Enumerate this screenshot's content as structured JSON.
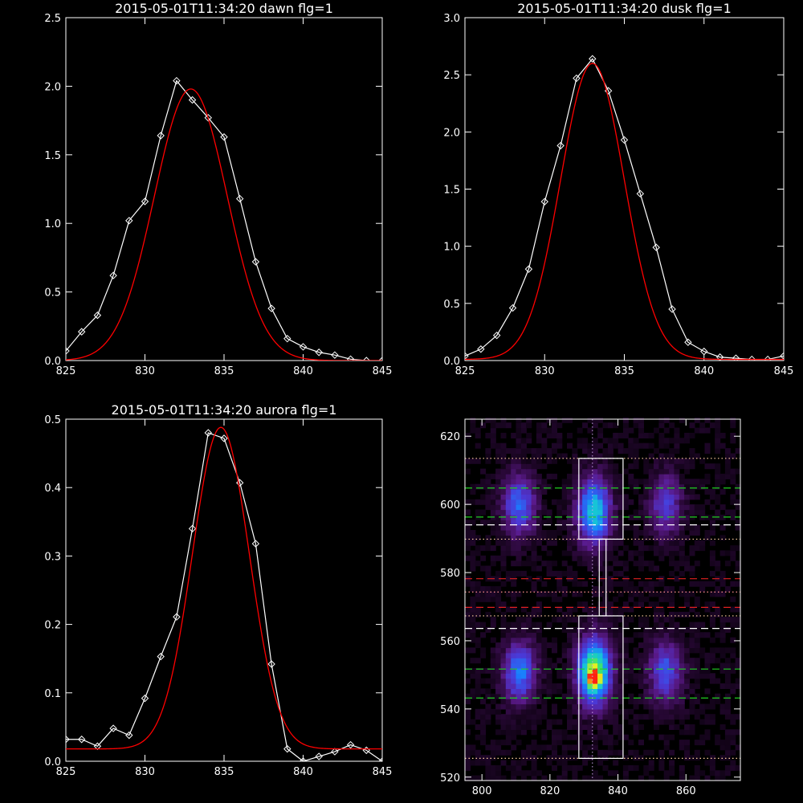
{
  "chart_data": [
    {
      "type": "line",
      "title": "2015-05-01T11:34:20 dawn flg=1",
      "xlim": [
        825,
        845
      ],
      "ylim": [
        0,
        2.5
      ],
      "xticks": [
        "825",
        "830",
        "835",
        "840",
        "845"
      ],
      "yticks": [
        "0.0",
        "0.5",
        "1.0",
        "1.5",
        "2.0",
        "2.5"
      ],
      "xtick_values": [
        825,
        830,
        835,
        840,
        845
      ],
      "ytick_values": [
        0,
        0.5,
        1.0,
        1.5,
        2.0,
        2.5
      ],
      "series": [
        {
          "color": "#ffffff",
          "marker": "diamond",
          "x": [
            825,
            826,
            827,
            828,
            829,
            830,
            831,
            832,
            833,
            834,
            835,
            836,
            837,
            838,
            839,
            840,
            841,
            842,
            843,
            844,
            845
          ],
          "y": [
            0.07,
            0.21,
            0.33,
            0.62,
            1.02,
            1.16,
            1.64,
            2.04,
            1.9,
            1.77,
            1.63,
            1.18,
            0.72,
            0.38,
            0.16,
            0.1,
            0.06,
            0.04,
            0.01,
            0.0,
            0.0
          ]
        },
        {
          "color": "#ff0000",
          "marker": "none",
          "fit": {
            "amplitude": 1.98,
            "center": 832.9,
            "sigma": 2.3,
            "offset": 0.0
          }
        }
      ]
    },
    {
      "type": "line",
      "title": "2015-05-01T11:34:20 dusk flg=1",
      "xlim": [
        825,
        845
      ],
      "ylim": [
        0,
        3.0
      ],
      "xticks": [
        "825",
        "830",
        "835",
        "840",
        "845"
      ],
      "yticks": [
        "0.0",
        "0.5",
        "1.0",
        "1.5",
        "2.0",
        "2.5",
        "3.0"
      ],
      "xtick_values": [
        825,
        830,
        835,
        840,
        845
      ],
      "ytick_values": [
        0,
        0.5,
        1.0,
        1.5,
        2.0,
        2.5,
        3.0
      ],
      "series": [
        {
          "color": "#ffffff",
          "marker": "diamond",
          "x": [
            825,
            826,
            827,
            828,
            829,
            830,
            831,
            832,
            833,
            834,
            835,
            836,
            837,
            838,
            839,
            840,
            841,
            842,
            843,
            844,
            845
          ],
          "y": [
            0.04,
            0.1,
            0.22,
            0.46,
            0.8,
            1.39,
            1.88,
            2.47,
            2.64,
            2.36,
            1.93,
            1.46,
            0.99,
            0.45,
            0.16,
            0.08,
            0.03,
            0.02,
            0.01,
            0.01,
            0.04
          ]
        },
        {
          "color": "#ff0000",
          "marker": "none",
          "fit": {
            "amplitude": 2.59,
            "center": 833.0,
            "sigma": 2.0,
            "offset": 0.01
          }
        }
      ]
    },
    {
      "type": "line",
      "title": "2015-05-01T11:34:20 aurora flg=1",
      "xlim": [
        825,
        845
      ],
      "ylim": [
        0,
        0.5
      ],
      "xticks": [
        "825",
        "830",
        "835",
        "840",
        "845"
      ],
      "yticks": [
        "0.0",
        "0.1",
        "0.2",
        "0.3",
        "0.4",
        "0.5"
      ],
      "xtick_values": [
        825,
        830,
        835,
        840,
        845
      ],
      "ytick_values": [
        0,
        0.1,
        0.2,
        0.3,
        0.4,
        0.5
      ],
      "series": [
        {
          "color": "#ffffff",
          "marker": "diamond",
          "x": [
            825,
            826,
            827,
            828,
            829,
            830,
            831,
            832,
            833,
            834,
            835,
            836,
            837,
            838,
            839,
            840,
            841,
            842,
            843,
            844,
            845
          ],
          "y": [
            0.032,
            0.032,
            0.022,
            0.048,
            0.038,
            0.092,
            0.153,
            0.211,
            0.34,
            0.48,
            0.472,
            0.407,
            0.318,
            0.142,
            0.018,
            0.0,
            0.007,
            0.014,
            0.024,
            0.016,
            0.0
          ]
        },
        {
          "color": "#ff0000",
          "marker": "none",
          "fit": {
            "amplitude": 0.47,
            "center": 834.8,
            "sigma": 1.8,
            "offset": 0.018
          }
        }
      ]
    },
    {
      "type": "heatmap",
      "title": "",
      "xlim": [
        795,
        876
      ],
      "ylim": [
        519,
        625
      ],
      "xticks": [
        "800",
        "820",
        "840",
        "860"
      ],
      "yticks": [
        "520",
        "540",
        "560",
        "580",
        "600",
        "620"
      ],
      "xtick_values": [
        800,
        820,
        840,
        860
      ],
      "ytick_values": [
        520,
        540,
        560,
        580,
        600,
        620
      ],
      "colormap": [
        "#000000",
        "#2a0838",
        "#5a1a8a",
        "#4a3ad8",
        "#1a7cff",
        "#17c7d4",
        "#2fe07a",
        "#e8f020",
        "#ff2010"
      ],
      "blobs": [
        {
          "x": 811,
          "y": 600,
          "sx": 3.5,
          "sy": 6.5,
          "amp": 0.42
        },
        {
          "x": 811,
          "y": 551,
          "sx": 3.5,
          "sy": 6.5,
          "amp": 0.45
        },
        {
          "x": 833,
          "y": 598,
          "sx": 3.5,
          "sy": 7.0,
          "amp": 0.6
        },
        {
          "x": 833,
          "y": 551,
          "sx": 3.5,
          "sy": 7.0,
          "amp": 0.78
        },
        {
          "x": 833,
          "y": 549,
          "sx": 1.3,
          "sy": 1.8,
          "amp": 0.35
        },
        {
          "x": 854,
          "y": 600,
          "sx": 3.5,
          "sy": 6.5,
          "amp": 0.32
        },
        {
          "x": 854,
          "y": 551,
          "sx": 3.5,
          "sy": 6.5,
          "amp": 0.38
        }
      ],
      "vline_x": 832.5,
      "hlines": [
        {
          "y": 613.5,
          "color": "#ffd0a0",
          "style": "dotted"
        },
        {
          "y": 604.8,
          "color": "#20d020",
          "style": "dashed"
        },
        {
          "y": 596.3,
          "color": "#20d020",
          "style": "dashed"
        },
        {
          "y": 594.0,
          "color": "#ffffff",
          "style": "dashed"
        },
        {
          "y": 589.8,
          "color": "#ffd0a0",
          "style": "dotted"
        },
        {
          "y": 578.2,
          "color": "#e02020",
          "style": "dashed"
        },
        {
          "y": 574.3,
          "color": "#ff9090",
          "style": "dotted"
        },
        {
          "y": 569.8,
          "color": "#e02020",
          "style": "dashed"
        },
        {
          "y": 567.3,
          "color": "#ffd0a0",
          "style": "dotted"
        },
        {
          "y": 563.6,
          "color": "#ffffff",
          "style": "dashed"
        },
        {
          "y": 551.7,
          "color": "#20d020",
          "style": "dashed"
        },
        {
          "y": 543.2,
          "color": "#20d020",
          "style": "dashed"
        },
        {
          "y": 525.5,
          "color": "#ffd0a0",
          "style": "dotted"
        }
      ],
      "boxes": [
        {
          "x0": 828.5,
          "x1": 841.5,
          "y0": 589.8,
          "y1": 613.5,
          "color": "#ffffff"
        },
        {
          "x0": 834.5,
          "x1": 836.5,
          "y0": 567.3,
          "y1": 589.8,
          "color": "#ffffff"
        },
        {
          "x0": 828.5,
          "x1": 841.5,
          "y0": 525.5,
          "y1": 567.3,
          "color": "#ffffff"
        }
      ]
    }
  ]
}
